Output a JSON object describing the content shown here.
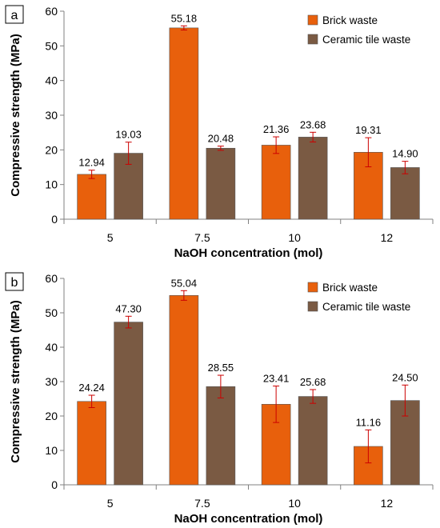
{
  "colors": {
    "brick": "#e8600c",
    "ceramic": "#7a5a43",
    "error_bar": "#cc0000",
    "axis": "#808080",
    "text": "#000000"
  },
  "chart_data": [
    {
      "panel_label": "a",
      "type": "bar",
      "categories": [
        "5",
        "7.5",
        "10",
        "12"
      ],
      "series": [
        {
          "name": "Brick waste",
          "color_key": "brick",
          "values": [
            12.94,
            55.18,
            21.36,
            19.31
          ],
          "errors": [
            1.2,
            0.6,
            2.4,
            4.2
          ],
          "labels": [
            "12.94",
            "55.18",
            "21.36",
            "19.31"
          ]
        },
        {
          "name": "Ceramic tile waste",
          "color_key": "ceramic",
          "values": [
            19.03,
            20.48,
            23.68,
            14.9
          ],
          "errors": [
            3.2,
            0.6,
            1.4,
            1.8
          ],
          "labels": [
            "19.03",
            "20.48",
            "23.68",
            "14.90"
          ]
        }
      ],
      "xlabel": "NaOH concentration (mol)",
      "ylabel": "Compressive strength (MPa)",
      "ylim": [
        0,
        60
      ],
      "yticks": [
        "0",
        "10",
        "20",
        "30",
        "40",
        "50",
        "60"
      ],
      "grid": false,
      "legend": "top-right"
    },
    {
      "panel_label": "b",
      "type": "bar",
      "categories": [
        "5",
        "7.5",
        "10",
        "12"
      ],
      "series": [
        {
          "name": "Brick waste",
          "color_key": "brick",
          "values": [
            24.24,
            55.04,
            23.41,
            11.16
          ],
          "errors": [
            1.8,
            1.4,
            5.3,
            4.8
          ],
          "labels": [
            "24.24",
            "55.04",
            "23.41",
            "11.16"
          ]
        },
        {
          "name": "Ceramic tile waste",
          "color_key": "ceramic",
          "values": [
            47.3,
            28.55,
            25.68,
            24.5
          ],
          "errors": [
            1.7,
            3.3,
            2.0,
            4.5
          ],
          "labels": [
            "47.30",
            "28.55",
            "25.68",
            "24.50"
          ]
        }
      ],
      "xlabel": "NaOH concentration (mol)",
      "ylabel": "Compressive strength (MPa)",
      "ylim": [
        0,
        60
      ],
      "yticks": [
        "0",
        "10",
        "20",
        "30",
        "40",
        "50",
        "60"
      ],
      "grid": false,
      "legend": "top-right"
    }
  ]
}
